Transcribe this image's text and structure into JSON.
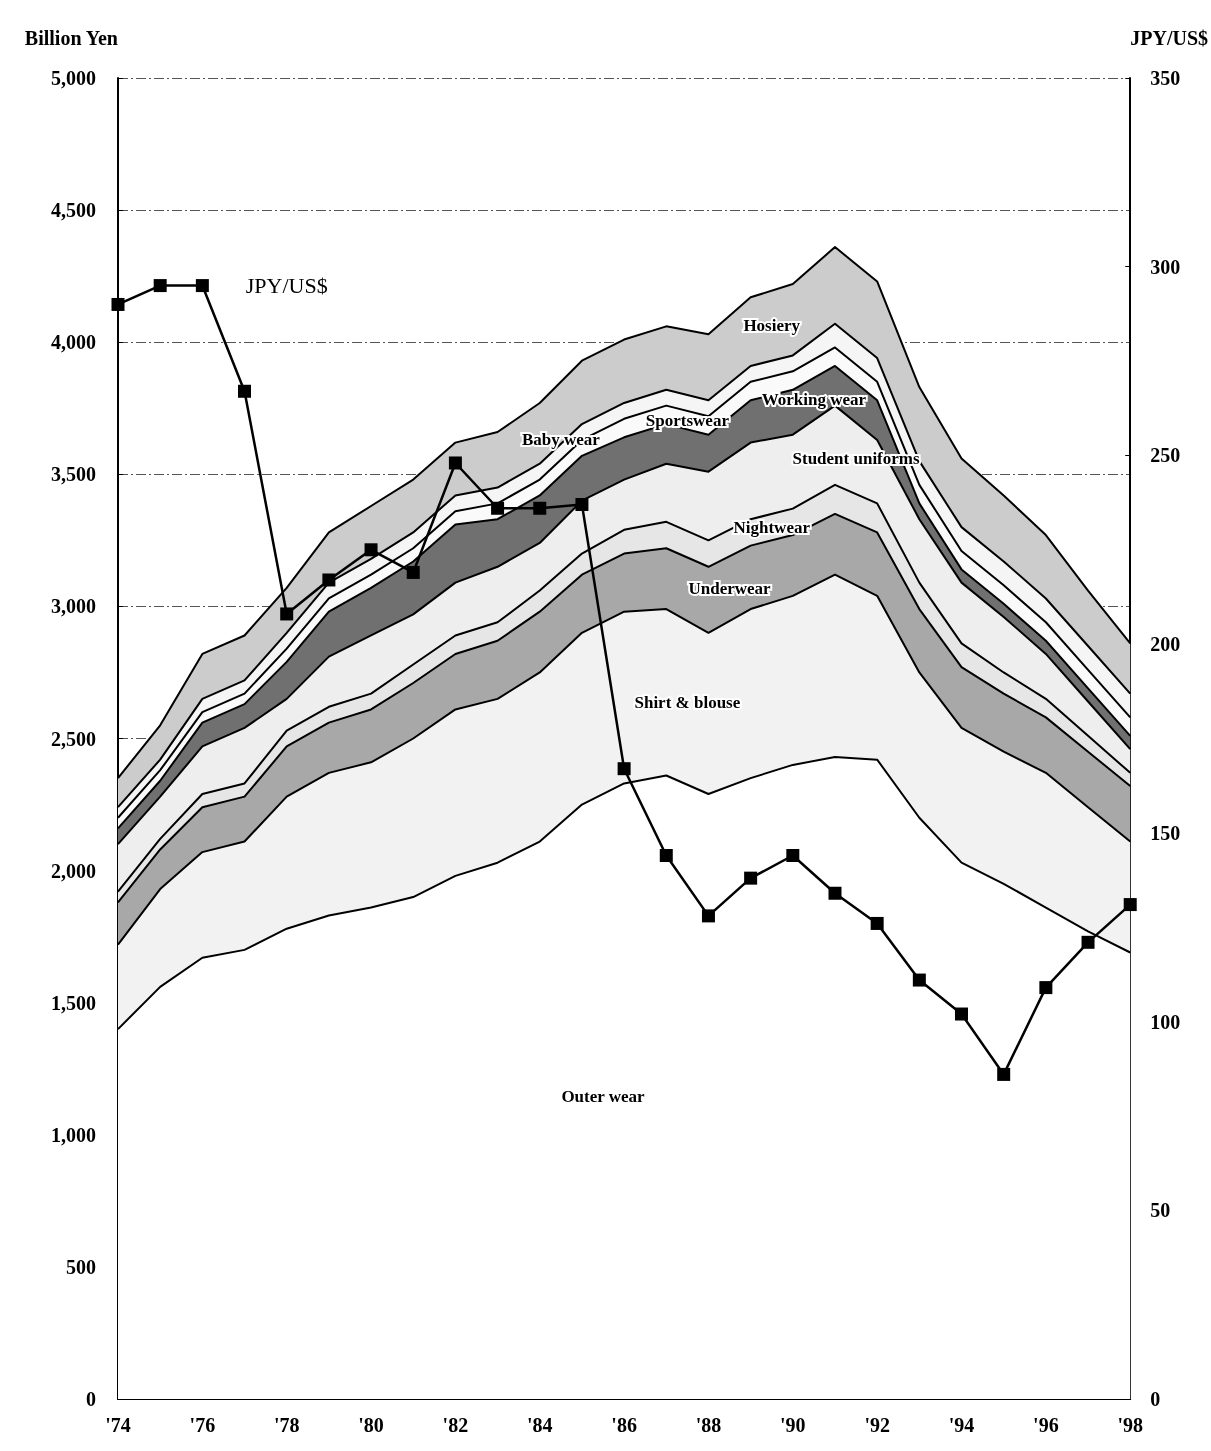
{
  "chart_data": {
    "type": "area",
    "stacked": true,
    "categories": [
      "'74",
      null,
      "'76",
      null,
      "'78",
      null,
      "'80",
      null,
      "'82",
      null,
      "'84",
      null,
      "'86",
      null,
      "'88",
      null,
      "'90",
      null,
      "'92",
      null,
      "'94",
      null,
      "'96",
      null,
      "'98"
    ],
    "ylabel": "Billion Yen",
    "y2label": "JPY/US$",
    "ylim": [
      0,
      5000
    ],
    "yticks": [
      0,
      500,
      {
        "value": 1000,
        "label": "1,000"
      },
      {
        "value": 1500,
        "label": "1,500"
      },
      {
        "value": 2000,
        "label": "2,000"
      },
      {
        "value": 2500,
        "label": "2,500"
      },
      {
        "value": 3000,
        "label": "3,000"
      },
      {
        "value": 3500,
        "label": "3,500"
      },
      {
        "value": 4000,
        "label": "4,000"
      },
      {
        "value": 4500,
        "label": "4,500"
      },
      {
        "value": 5000,
        "label": "5,000"
      }
    ],
    "y2lim": [
      0,
      350
    ],
    "y2ticks": [
      0,
      50,
      100,
      150,
      200,
      250,
      300,
      350
    ],
    "grid": "y",
    "legend": false,
    "series": [
      {
        "name": "Outer wear",
        "color": "#ffffff",
        "values": [
          1400,
          1560,
          1670,
          1700,
          1780,
          1830,
          1860,
          1900,
          1980,
          2030,
          2110,
          2250,
          2330,
          2360,
          2290,
          2350,
          2400,
          2430,
          2420,
          2200,
          2030,
          1950,
          1860,
          1770,
          1690
        ]
      },
      {
        "name": "Shirt & blouse",
        "color": "#f2f2f2",
        "values": [
          320,
          370,
          400,
          410,
          500,
          540,
          550,
          600,
          630,
          620,
          640,
          650,
          650,
          630,
          610,
          640,
          640,
          690,
          620,
          550,
          510,
          500,
          510,
          470,
          420
        ]
      },
      {
        "name": "Underwear",
        "color": "#a8a8a8",
        "values": [
          160,
          150,
          170,
          170,
          190,
          190,
          200,
          210,
          210,
          220,
          230,
          220,
          220,
          230,
          250,
          240,
          230,
          230,
          240,
          240,
          230,
          220,
          210,
          210,
          210
        ]
      },
      {
        "name": "Nightwear",
        "color": "#e6e6e6",
        "values": [
          40,
          40,
          50,
          50,
          60,
          60,
          60,
          70,
          70,
          70,
          80,
          80,
          90,
          100,
          100,
          100,
          100,
          110,
          110,
          100,
          90,
          80,
          70,
          60,
          50
        ]
      },
      {
        "name": "Student uniforms",
        "color": "#eeeeee",
        "values": [
          180,
          160,
          180,
          210,
          120,
          190,
          220,
          190,
          200,
          210,
          180,
          200,
          190,
          220,
          260,
          290,
          280,
          300,
          240,
          240,
          230,
          210,
          170,
          130,
          90
        ]
      },
      {
        "name": "Working wear",
        "color": "#707070",
        "values": [
          60,
          60,
          90,
          90,
          140,
          170,
          180,
          200,
          220,
          180,
          180,
          170,
          160,
          150,
          140,
          160,
          170,
          150,
          150,
          60,
          50,
          50,
          50,
          50,
          50
        ]
      },
      {
        "name": "Sportswear",
        "color": "#fafafa",
        "values": [
          40,
          40,
          40,
          40,
          50,
          50,
          50,
          50,
          50,
          60,
          60,
          60,
          70,
          70,
          70,
          70,
          70,
          70,
          70,
          70,
          70,
          70,
          70,
          70,
          70
        ]
      },
      {
        "name": "Baby wear",
        "color": "#f5f5f5",
        "values": [
          40,
          40,
          50,
          50,
          60,
          60,
          60,
          60,
          60,
          60,
          60,
          60,
          60,
          60,
          60,
          60,
          60,
          90,
          90,
          90,
          90,
          90,
          90,
          90,
          90
        ]
      },
      {
        "name": "Hosiery",
        "color": "#cccccc",
        "values": [
          110,
          130,
          170,
          170,
          170,
          190,
          200,
          200,
          200,
          210,
          230,
          240,
          240,
          240,
          250,
          260,
          270,
          290,
          290,
          280,
          260,
          250,
          240,
          210,
          190
        ]
      },
      {
        "name": "JPY/US$",
        "type": "line",
        "axis": "y2",
        "marker": "square",
        "color": "#000000",
        "values": [
          290,
          295,
          295,
          267,
          208,
          217,
          225,
          219,
          248,
          236,
          236,
          237,
          167,
          144,
          128,
          138,
          144,
          134,
          126,
          111,
          102,
          86,
          109,
          121,
          131
        ]
      }
    ]
  }
}
